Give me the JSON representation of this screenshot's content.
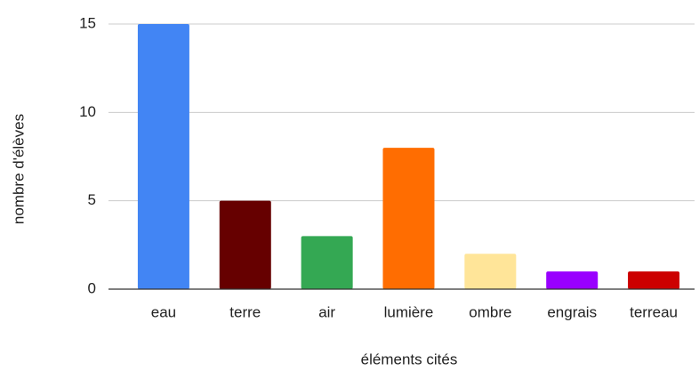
{
  "chart_data": {
    "type": "bar",
    "categories": [
      "eau",
      "terre",
      "air",
      "lumière",
      "ombre",
      "engrais",
      "terreau"
    ],
    "values": [
      15,
      5,
      3,
      8,
      2,
      1,
      1
    ],
    "colors": [
      "#4285f4",
      "#660000",
      "#34a853",
      "#ff6d01",
      "#ffe599",
      "#9900ff",
      "#cc0000"
    ],
    "x_label": "éléments cités",
    "y_label": "nombre d'élèves",
    "ylim": [
      0,
      15
    ],
    "yticks": [
      0,
      5,
      10,
      15
    ],
    "grid": true
  }
}
